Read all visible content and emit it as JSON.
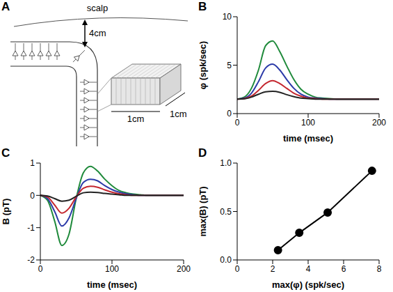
{
  "diagram": {
    "label": "A",
    "texts": {
      "scalp": "scalp",
      "depth": "4cm",
      "width": "1cm",
      "length": "1cm"
    }
  },
  "chart_data": [
    {
      "label": "B",
      "type": "line",
      "xlabel": "time (msec)",
      "ylabel": "φ (spk/sec)",
      "xlim": [
        0,
        200
      ],
      "xticks": [
        0,
        100,
        200
      ],
      "ylim": [
        0,
        10
      ],
      "yticks": [
        0,
        5,
        10
      ],
      "line_style": "solid",
      "x": [
        0,
        10,
        20,
        30,
        40,
        50,
        60,
        70,
        80,
        90,
        100,
        110,
        120,
        130,
        140,
        150,
        160,
        170,
        180,
        190,
        200
      ],
      "series": [
        {
          "color": "#1f8a3b",
          "values": [
            1.5,
            1.7,
            2.6,
            4.5,
            7.0,
            7.5,
            6.4,
            4.9,
            3.5,
            2.5,
            2.0,
            1.7,
            1.6,
            1.55,
            1.5,
            1.5,
            1.5,
            1.5,
            1.5,
            1.5,
            1.5
          ]
        },
        {
          "color": "#2b3aa8",
          "values": [
            1.5,
            1.6,
            2.1,
            3.3,
            4.7,
            5.1,
            4.5,
            3.5,
            2.6,
            2.0,
            1.7,
            1.6,
            1.55,
            1.5,
            1.5,
            1.5,
            1.5,
            1.5,
            1.5,
            1.5,
            1.5
          ]
        },
        {
          "color": "#c4262e",
          "values": [
            1.5,
            1.55,
            1.8,
            2.4,
            3.1,
            3.4,
            3.1,
            2.6,
            2.1,
            1.8,
            1.6,
            1.55,
            1.5,
            1.5,
            1.5,
            1.5,
            1.5,
            1.5,
            1.5,
            1.5,
            1.5
          ]
        },
        {
          "color": "#222222",
          "values": [
            1.5,
            1.52,
            1.7,
            2.0,
            2.25,
            2.3,
            2.2,
            1.95,
            1.75,
            1.6,
            1.55,
            1.5,
            1.5,
            1.5,
            1.5,
            1.5,
            1.5,
            1.5,
            1.5,
            1.5,
            1.5
          ]
        }
      ]
    },
    {
      "label": "C",
      "type": "line",
      "xlabel": "time (msec)",
      "ylabel": "B (pT)",
      "xlim": [
        0,
        200
      ],
      "xticks": [
        0,
        100,
        200
      ],
      "ylim": [
        -2,
        1
      ],
      "yticks": [
        -2,
        -1,
        0,
        1
      ],
      "line_style": "solid",
      "x": [
        0,
        10,
        20,
        30,
        40,
        50,
        60,
        70,
        80,
        90,
        100,
        110,
        120,
        130,
        140,
        150,
        160,
        170,
        180,
        190,
        200
      ],
      "series": [
        {
          "color": "#1f8a3b",
          "values": [
            0,
            -0.15,
            -0.8,
            -1.55,
            -1.2,
            -0.1,
            0.7,
            0.9,
            0.75,
            0.5,
            0.3,
            0.15,
            0.08,
            0.04,
            0.02,
            0,
            0,
            0,
            0,
            0,
            0
          ]
        },
        {
          "color": "#2b3aa8",
          "values": [
            0,
            -0.1,
            -0.5,
            -0.95,
            -0.7,
            -0.1,
            0.4,
            0.5,
            0.45,
            0.3,
            0.18,
            0.1,
            0.05,
            0.02,
            0,
            0,
            0,
            0,
            0,
            0,
            0
          ]
        },
        {
          "color": "#c4262e",
          "values": [
            0,
            -0.05,
            -0.3,
            -0.55,
            -0.4,
            -0.05,
            0.22,
            0.28,
            0.25,
            0.17,
            0.1,
            0.05,
            0.02,
            0,
            0,
            0,
            0,
            0,
            0,
            0,
            0
          ]
        },
        {
          "color": "#222222",
          "values": [
            0,
            -0.02,
            -0.1,
            -0.18,
            -0.15,
            -0.03,
            0.08,
            0.1,
            0.09,
            0.06,
            0.04,
            0.02,
            0,
            0,
            0,
            0,
            0,
            0,
            0,
            0,
            0
          ]
        }
      ]
    },
    {
      "label": "D",
      "type": "line",
      "xlabel": "max(φ) (spk/sec)",
      "ylabel": "max(B) (pT)",
      "xlim": [
        0,
        8
      ],
      "xticks": [
        0,
        2,
        4,
        6,
        8
      ],
      "ylim": [
        0,
        1
      ],
      "yticks": [
        {
          "value": 0,
          "label": "0.0"
        },
        {
          "value": 0.5,
          "label": "0.5"
        },
        {
          "value": 1,
          "label": "1.0"
        }
      ],
      "x": [
        2.3,
        3.5,
        5.1,
        7.6
      ],
      "values": [
        0.1,
        0.28,
        0.49,
        0.92
      ],
      "color": "#000000",
      "marker": "circle",
      "line_style": "solid"
    }
  ]
}
